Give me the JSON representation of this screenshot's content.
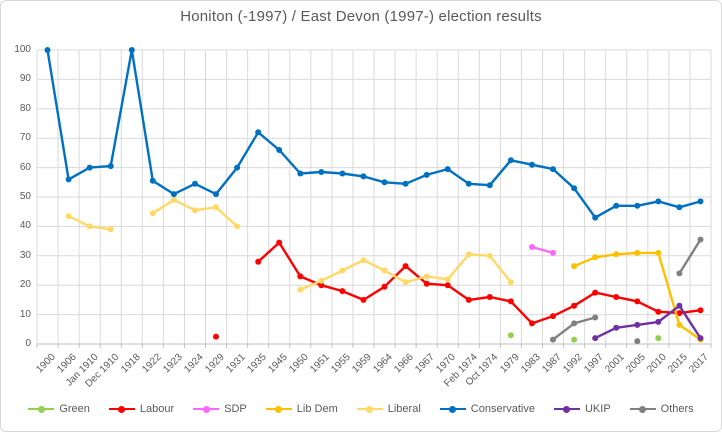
{
  "title": "Honiton (-1997) / East Devon (1997-) election results",
  "y_axis_ticks": [
    "100",
    "90",
    "80",
    "70",
    "60",
    "50",
    "40",
    "30",
    "20",
    "10",
    "0"
  ],
  "colors": {
    "grid": "#d9d9d9",
    "axis": "#bfbfbf",
    "text": "#595959"
  },
  "chart_data": {
    "type": "line",
    "title": "Honiton (-1997) / East Devon (1997-) election results",
    "xlabel": "",
    "ylabel": "",
    "ylim": [
      0,
      100
    ],
    "ytick_step": 10,
    "grid": true,
    "legend_position": "bottom",
    "categories": [
      "1900",
      "1906",
      "Jan 1910",
      "Dec 1910",
      "1918",
      "1922",
      "1923",
      "1924",
      "1929",
      "1931",
      "1935",
      "1945",
      "1950",
      "1951",
      "1955",
      "1959",
      "1964",
      "1966",
      "1967",
      "1970",
      "Feb 1974",
      "Oct 1974",
      "1979",
      "1983",
      "1987",
      "1992",
      "1997",
      "2001",
      "2005",
      "2010",
      "2015",
      "2017"
    ],
    "series": [
      {
        "name": "Green",
        "color": "#92D050",
        "values": [
          null,
          null,
          null,
          null,
          null,
          null,
          null,
          null,
          null,
          null,
          null,
          null,
          null,
          null,
          null,
          null,
          null,
          null,
          null,
          null,
          null,
          null,
          3,
          null,
          null,
          1.5,
          null,
          null,
          null,
          2,
          null,
          null
        ]
      },
      {
        "name": "Labour",
        "color": "#FF0000",
        "values": [
          null,
          null,
          null,
          null,
          null,
          null,
          null,
          null,
          2.5,
          null,
          28,
          34.5,
          23,
          20,
          18,
          15,
          19.5,
          26.5,
          20.5,
          20,
          15,
          16,
          14.5,
          7,
          9.5,
          13,
          17.5,
          16,
          14.5,
          11,
          10.5,
          11.5
        ]
      },
      {
        "name": "SDP",
        "color": "#FF66FF",
        "values": [
          null,
          null,
          null,
          null,
          null,
          null,
          null,
          null,
          null,
          null,
          null,
          null,
          null,
          null,
          null,
          null,
          null,
          null,
          null,
          null,
          null,
          null,
          null,
          33,
          31,
          null,
          null,
          null,
          null,
          null,
          null,
          null
        ]
      },
      {
        "name": "Lib Dem",
        "color": "#FFC000",
        "values": [
          null,
          null,
          null,
          null,
          null,
          null,
          null,
          null,
          null,
          null,
          null,
          null,
          null,
          null,
          null,
          null,
          null,
          null,
          null,
          null,
          null,
          null,
          null,
          null,
          null,
          26.5,
          29.5,
          30.5,
          31,
          31,
          6.5,
          1.5
        ]
      },
      {
        "name": "Liberal",
        "color": "#FFD966",
        "values": [
          null,
          43.5,
          40,
          39,
          null,
          44.5,
          49,
          45.5,
          46.5,
          40,
          null,
          null,
          18.5,
          21.5,
          25,
          28.5,
          25,
          21,
          23,
          22,
          30.5,
          30,
          21,
          null,
          null,
          null,
          null,
          null,
          null,
          null,
          null,
          null
        ]
      },
      {
        "name": "Conservative",
        "color": "#0070C0",
        "values": [
          100,
          56,
          60,
          60.5,
          100,
          55.5,
          51,
          54.5,
          51,
          60,
          72,
          66,
          58,
          58.5,
          58,
          57,
          55,
          54.5,
          57.5,
          59.5,
          54.5,
          54,
          62.5,
          61,
          59.5,
          53,
          43,
          47,
          47,
          48.5,
          46.5,
          48.5
        ]
      },
      {
        "name": "UKIP",
        "color": "#7030A0",
        "values": [
          null,
          null,
          null,
          null,
          null,
          null,
          null,
          null,
          null,
          null,
          null,
          null,
          null,
          null,
          null,
          null,
          null,
          null,
          null,
          null,
          null,
          null,
          null,
          null,
          null,
          null,
          2,
          5.5,
          6.5,
          7.5,
          13,
          2
        ]
      },
      {
        "name": "Others",
        "color": "#808080",
        "values": [
          null,
          null,
          null,
          null,
          null,
          null,
          null,
          null,
          null,
          null,
          null,
          null,
          null,
          null,
          null,
          null,
          null,
          null,
          null,
          null,
          null,
          null,
          null,
          null,
          1.5,
          7,
          9,
          null,
          1,
          null,
          24,
          35.5
        ]
      }
    ]
  }
}
